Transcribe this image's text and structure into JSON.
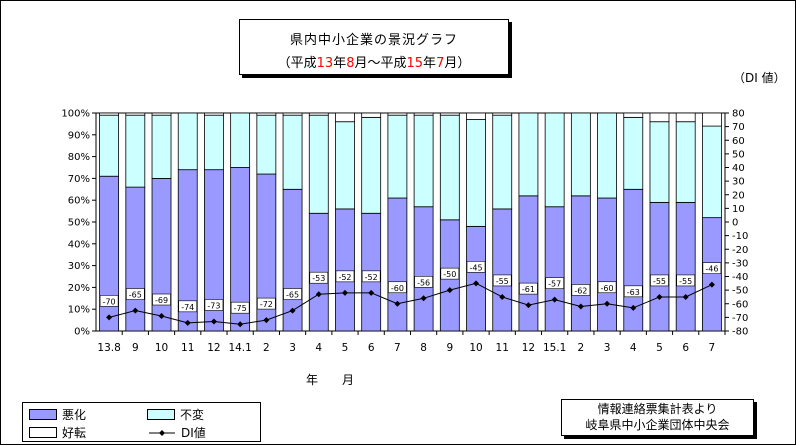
{
  "title": {
    "line1": "県内中小企業の景況グラフ",
    "line2_parts": [
      "（平成",
      "13",
      "年",
      "8",
      "月〜平成",
      "15",
      "年",
      "7",
      "月）"
    ]
  },
  "di_unit_label": "（DI 値）",
  "x_axis_label": "年　月",
  "source": {
    "line1": "情報連絡票集計表より",
    "line2": "岐阜県中小企業団体中央会"
  },
  "legend": {
    "worse": "悪化",
    "unchanged": "不変",
    "better": "好転",
    "di": "DI値"
  },
  "colors": {
    "worse": "#9999ff",
    "unchanged": "#ccffff",
    "better": "#ffffff",
    "di_line": "#000000"
  },
  "chart_data": {
    "type": "bar",
    "stacked": true,
    "categories": [
      "13.8",
      "9",
      "10",
      "11",
      "12",
      "14.1",
      "2",
      "3",
      "4",
      "5",
      "6",
      "7",
      "8",
      "9",
      "10",
      "11",
      "12",
      "15.1",
      "2",
      "3",
      "4",
      "5",
      "6",
      "7"
    ],
    "series": [
      {
        "name": "悪化",
        "axis": "left",
        "values": [
          71,
          66,
          70,
          74,
          74,
          75,
          72,
          65,
          54,
          56,
          54,
          61,
          57,
          51,
          48,
          56,
          62,
          57,
          62,
          61,
          65,
          59,
          59,
          52
        ]
      },
      {
        "name": "不変",
        "axis": "left",
        "values": [
          28,
          33,
          29,
          26,
          25,
          25,
          27,
          34,
          45,
          40,
          44,
          38,
          42,
          48,
          49,
          43,
          38,
          43,
          38,
          39,
          33,
          37,
          37,
          42
        ]
      },
      {
        "name": "好転",
        "axis": "left",
        "values": [
          1,
          1,
          1,
          0,
          1,
          0,
          1,
          1,
          1,
          4,
          2,
          1,
          1,
          1,
          3,
          1,
          0,
          0,
          0,
          0,
          2,
          4,
          4,
          6
        ]
      },
      {
        "name": "DI値",
        "type": "line",
        "axis": "right",
        "values": [
          -70,
          -65,
          -69,
          -74,
          -73,
          -75,
          -72,
          -65,
          -53,
          -52,
          -52,
          -60,
          -56,
          -50,
          -45,
          -55,
          -61,
          -57,
          -62,
          -60,
          -63,
          -55,
          -55,
          -46
        ]
      }
    ],
    "y_left": {
      "min": 0,
      "max": 100,
      "ticks": [
        "0%",
        "10%",
        "20%",
        "30%",
        "40%",
        "50%",
        "60%",
        "70%",
        "80%",
        "90%",
        "100%"
      ]
    },
    "y_right": {
      "min": -80,
      "max": 80,
      "ticks": [
        "80",
        "70",
        "60",
        "50",
        "40",
        "30",
        "20",
        "10",
        "0",
        "-10",
        "-20",
        "-30",
        "-40",
        "-50",
        "-60",
        "-70",
        "-80"
      ]
    },
    "xlabel": "年　月",
    "grid": false,
    "legend_position": "bottom-left"
  }
}
